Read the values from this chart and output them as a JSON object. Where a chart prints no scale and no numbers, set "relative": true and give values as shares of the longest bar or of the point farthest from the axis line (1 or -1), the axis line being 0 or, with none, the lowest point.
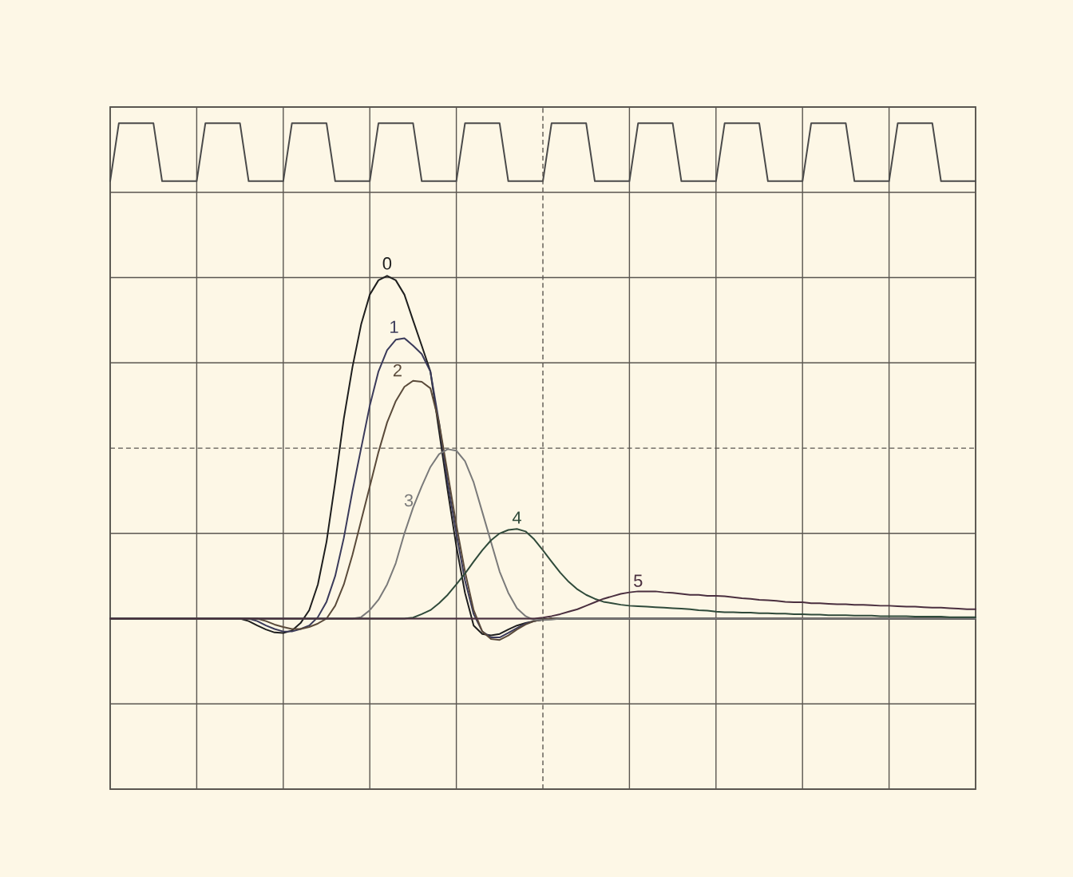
{
  "chart_data": {
    "type": "line",
    "relative": true,
    "grid": true,
    "ref_lines": [
      {
        "axis": "y",
        "value": 0.344,
        "color": "#5a5650",
        "line_style": "dashed"
      }
    ],
    "categories": [
      null,
      null,
      null,
      null,
      null,
      null,
      null,
      null,
      null,
      null,
      null,
      null,
      null,
      null,
      null,
      null,
      null,
      null,
      null,
      null,
      null,
      null,
      null,
      null,
      null,
      null,
      null,
      null,
      null,
      null,
      null,
      null,
      null,
      null,
      null,
      null,
      null,
      null,
      null,
      null,
      null,
      null,
      null,
      null,
      null,
      null,
      null,
      null,
      null,
      null,
      null,
      null,
      null,
      null,
      null,
      null,
      null,
      null,
      null,
      null,
      null,
      null,
      null,
      null,
      null,
      null,
      null,
      null,
      null,
      null,
      null,
      null,
      null,
      null,
      null,
      null,
      null,
      null,
      null,
      null,
      null,
      null,
      null,
      null,
      null,
      null,
      null,
      null,
      null,
      null,
      null,
      null,
      null,
      null,
      null,
      null,
      null,
      null,
      null,
      null,
      null
    ],
    "series": [
      {
        "name": "0",
        "color": "#1e1e1e",
        "values": [
          0,
          0,
          0,
          0,
          0,
          0,
          0,
          0,
          0,
          0,
          0,
          0,
          0,
          0,
          0,
          0,
          -0.005,
          -0.014,
          -0.022,
          -0.028,
          -0.029,
          -0.024,
          -0.009,
          0.017,
          0.069,
          0.155,
          0.275,
          0.404,
          0.508,
          0.594,
          0.654,
          0.683,
          0.692,
          0.683,
          0.654,
          0.602,
          0.551,
          0.499,
          0.379,
          0.258,
          0.146,
          0.052,
          -0.014,
          -0.031,
          -0.034,
          -0.031,
          -0.022,
          -0.014,
          -0.009,
          -0.005,
          -0.002,
          0,
          0,
          0,
          0,
          0,
          0,
          0,
          0,
          0,
          0,
          0,
          0,
          0,
          0,
          0,
          0,
          0,
          0,
          0,
          0,
          0,
          0,
          0,
          0,
          0,
          0,
          0,
          0,
          0,
          0,
          0,
          0,
          0,
          0,
          0,
          0,
          0,
          0,
          0,
          0,
          0,
          0,
          0,
          0,
          0,
          0,
          0,
          0,
          0,
          0
        ]
      },
      {
        "name": "1",
        "color": "#3a3a5a",
        "values": [
          0,
          0,
          0,
          0,
          0,
          0,
          0,
          0,
          0,
          0,
          0,
          0,
          0,
          0,
          0,
          0,
          0,
          -0.005,
          -0.014,
          -0.021,
          -0.026,
          -0.026,
          -0.021,
          -0.014,
          0.003,
          0.034,
          0.086,
          0.163,
          0.258,
          0.344,
          0.43,
          0.499,
          0.542,
          0.563,
          0.566,
          0.551,
          0.534,
          0.499,
          0.396,
          0.275,
          0.172,
          0.077,
          0.009,
          -0.026,
          -0.038,
          -0.038,
          -0.029,
          -0.019,
          -0.01,
          -0.005,
          -0.002,
          0,
          0,
          0,
          0,
          0,
          0,
          0,
          0,
          0,
          0,
          0,
          0,
          0,
          0,
          0,
          0,
          0,
          0,
          0,
          0,
          0,
          0,
          0,
          0,
          0,
          0,
          0,
          0,
          0,
          0,
          0,
          0,
          0,
          0,
          0,
          0,
          0,
          0,
          0,
          0,
          0,
          0,
          0,
          0,
          0,
          0,
          0,
          0,
          0,
          0
        ]
      },
      {
        "name": "2",
        "color": "#5a4a3a",
        "values": [
          0,
          0,
          0,
          0,
          0,
          0,
          0,
          0,
          0,
          0,
          0,
          0,
          0,
          0,
          0,
          0,
          0,
          0,
          -0.005,
          -0.012,
          -0.017,
          -0.021,
          -0.021,
          -0.017,
          -0.01,
          0,
          0.026,
          0.069,
          0.129,
          0.198,
          0.267,
          0.336,
          0.396,
          0.439,
          0.468,
          0.48,
          0.478,
          0.465,
          0.396,
          0.293,
          0.189,
          0.095,
          0.017,
          -0.026,
          -0.041,
          -0.043,
          -0.034,
          -0.022,
          -0.012,
          -0.005,
          -0.002,
          0,
          0,
          0,
          0,
          0,
          0,
          0,
          0,
          0,
          0,
          0,
          0,
          0,
          0,
          0,
          0,
          0,
          0,
          0,
          0,
          0,
          0,
          0,
          0,
          0,
          0,
          0,
          0,
          0,
          0,
          0,
          0,
          0,
          0,
          0,
          0,
          0,
          0,
          0,
          0,
          0,
          0,
          0,
          0,
          0,
          0,
          0,
          0,
          0,
          0
        ]
      },
      {
        "name": "3",
        "color": "#7a7a7a",
        "values": [
          0,
          0,
          0,
          0,
          0,
          0,
          0,
          0,
          0,
          0,
          0,
          0,
          0,
          0,
          0,
          0,
          0,
          0,
          0,
          0,
          0,
          0,
          0,
          0,
          0,
          0,
          0,
          0,
          0,
          0.003,
          0.017,
          0.038,
          0.069,
          0.112,
          0.172,
          0.224,
          0.267,
          0.306,
          0.332,
          0.342,
          0.339,
          0.318,
          0.275,
          0.215,
          0.155,
          0.095,
          0.052,
          0.021,
          0.005,
          -0.003,
          -0.003,
          -0.002,
          0,
          0,
          0,
          0,
          0,
          0,
          0,
          0,
          0,
          0,
          0,
          0,
          0,
          0,
          0,
          0,
          0,
          0,
          0,
          0,
          0,
          0,
          0,
          0,
          0,
          0,
          0,
          0,
          0,
          0,
          0,
          0,
          0,
          0,
          0,
          0,
          0,
          0,
          0,
          0,
          0,
          0,
          0,
          0,
          0,
          0,
          0,
          0,
          0
        ]
      },
      {
        "name": "4",
        "color": "#2f4a3a",
        "values": [
          0,
          0,
          0,
          0,
          0,
          0,
          0,
          0,
          0,
          0,
          0,
          0,
          0,
          0,
          0,
          0,
          0,
          0,
          0,
          0,
          0,
          0,
          0,
          0,
          0,
          0,
          0,
          0,
          0,
          0,
          0,
          0,
          0,
          0,
          0,
          0.002,
          0.009,
          0.017,
          0.031,
          0.048,
          0.069,
          0.091,
          0.115,
          0.138,
          0.158,
          0.172,
          0.179,
          0.181,
          0.176,
          0.16,
          0.138,
          0.115,
          0.093,
          0.074,
          0.059,
          0.048,
          0.04,
          0.034,
          0.031,
          0.028,
          0.026,
          0.025,
          0.024,
          0.023,
          0.022,
          0.021,
          0.02,
          0.019,
          0.017,
          0.016,
          0.014,
          0.013,
          0.013,
          0.012,
          0.012,
          0.011,
          0.011,
          0.01,
          0.01,
          0.009,
          0.009,
          0.008,
          0.008,
          0.007,
          0.007,
          0.007,
          0.006,
          0.006,
          0.006,
          0.005,
          0.005,
          0.005,
          0.005,
          0.004,
          0.004,
          0.004,
          0.004,
          0.003,
          0.003,
          0.003,
          0.003
        ]
      },
      {
        "name": "5",
        "color": "#4a2f3f",
        "values": [
          0,
          0,
          0,
          0,
          0,
          0,
          0,
          0,
          0,
          0,
          0,
          0,
          0,
          0,
          0,
          0,
          0,
          0,
          0,
          0,
          0,
          0,
          0,
          0,
          0,
          0,
          0,
          0,
          0,
          0,
          0,
          0,
          0,
          0,
          0,
          0,
          0,
          0,
          0,
          0,
          0,
          0,
          0,
          0,
          0,
          0,
          0,
          0,
          0,
          0,
          0.002,
          0.005,
          0.009,
          0.014,
          0.019,
          0.026,
          0.033,
          0.04,
          0.045,
          0.05,
          0.053,
          0.055,
          0.055,
          0.055,
          0.053,
          0.052,
          0.05,
          0.048,
          0.048,
          0.046,
          0.046,
          0.045,
          0.043,
          0.041,
          0.04,
          0.038,
          0.037,
          0.036,
          0.034,
          0.033,
          0.033,
          0.031,
          0.031,
          0.03,
          0.029,
          0.029,
          0.028,
          0.028,
          0.027,
          0.026,
          0.026,
          0.025,
          0.024,
          0.024,
          0.023,
          0.022,
          0.022,
          0.021,
          0.02,
          0.019,
          0.019
        ]
      },
      {
        "color": "#4a4a4a",
        "values": [
          0.883,
          1,
          1,
          1,
          1,
          1,
          0.883,
          0.883,
          0.883,
          0.883,
          0.883,
          1,
          1,
          1,
          1,
          1,
          0.883,
          0.883,
          0.883,
          0.883,
          0.883,
          1,
          1,
          1,
          1,
          1,
          0.883,
          0.883,
          0.883,
          0.883,
          0.883,
          1,
          1,
          1,
          1,
          1,
          0.883,
          0.883,
          0.883,
          0.883,
          0.883,
          1,
          1,
          1,
          1,
          1,
          0.883,
          0.883,
          0.883,
          0.883,
          0.883,
          1,
          1,
          1,
          1,
          1,
          0.883,
          0.883,
          0.883,
          0.883,
          0.883,
          1,
          1,
          1,
          1,
          1,
          0.883,
          0.883,
          0.883,
          0.883,
          0.883,
          1,
          1,
          1,
          1,
          1,
          0.883,
          0.883,
          0.883,
          0.883,
          0.883,
          1,
          1,
          1,
          1,
          1,
          0.883,
          0.883,
          0.883,
          0.883,
          0.883,
          1,
          1,
          1,
          1,
          1,
          0.883,
          0.883,
          0.883,
          0.883,
          0.883
        ]
      }
    ]
  }
}
